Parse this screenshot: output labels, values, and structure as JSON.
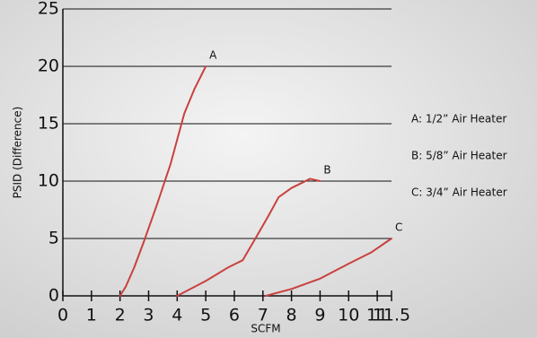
{
  "chart_data": {
    "type": "line",
    "xlabel": "SCFM",
    "ylabel": "PSID (Difference)",
    "xlim": [
      0,
      11.5
    ],
    "xticks": [
      0,
      1,
      2,
      3,
      4,
      5,
      6,
      7,
      8,
      9,
      10,
      11,
      11.5
    ],
    "ylim": [
      0,
      25
    ],
    "yticks": [
      0,
      5,
      10,
      15,
      20,
      25
    ],
    "grid": true,
    "series": [
      {
        "name": "A",
        "color": "#c8413e",
        "x": [
          2,
          2.2,
          2.5,
          2.83,
          3.3,
          3.77,
          4.25,
          4.6,
          5
        ],
        "values": [
          0,
          0.8,
          2.5,
          4.7,
          8,
          11.5,
          15.9,
          18,
          20
        ]
      },
      {
        "name": "B",
        "color": "#c8413e",
        "x": [
          4,
          5,
          5.8,
          6.29,
          6.76,
          7.2,
          7.55,
          8,
          8.65,
          9
        ],
        "values": [
          0,
          1.3,
          2.5,
          3.1,
          5.1,
          7,
          8.6,
          9.4,
          10.2,
          10
        ]
      },
      {
        "name": "C",
        "color": "#c8413e",
        "x": [
          7.1,
          8,
          9,
          10,
          10.8,
          11.5
        ],
        "values": [
          0,
          0.6,
          1.5,
          2.8,
          3.8,
          5
        ]
      }
    ],
    "annotations": [
      "A: 1/2” Air Heater",
      "B: 5/8” Air Heater",
      "C: 3/4” Air Heater"
    ]
  }
}
